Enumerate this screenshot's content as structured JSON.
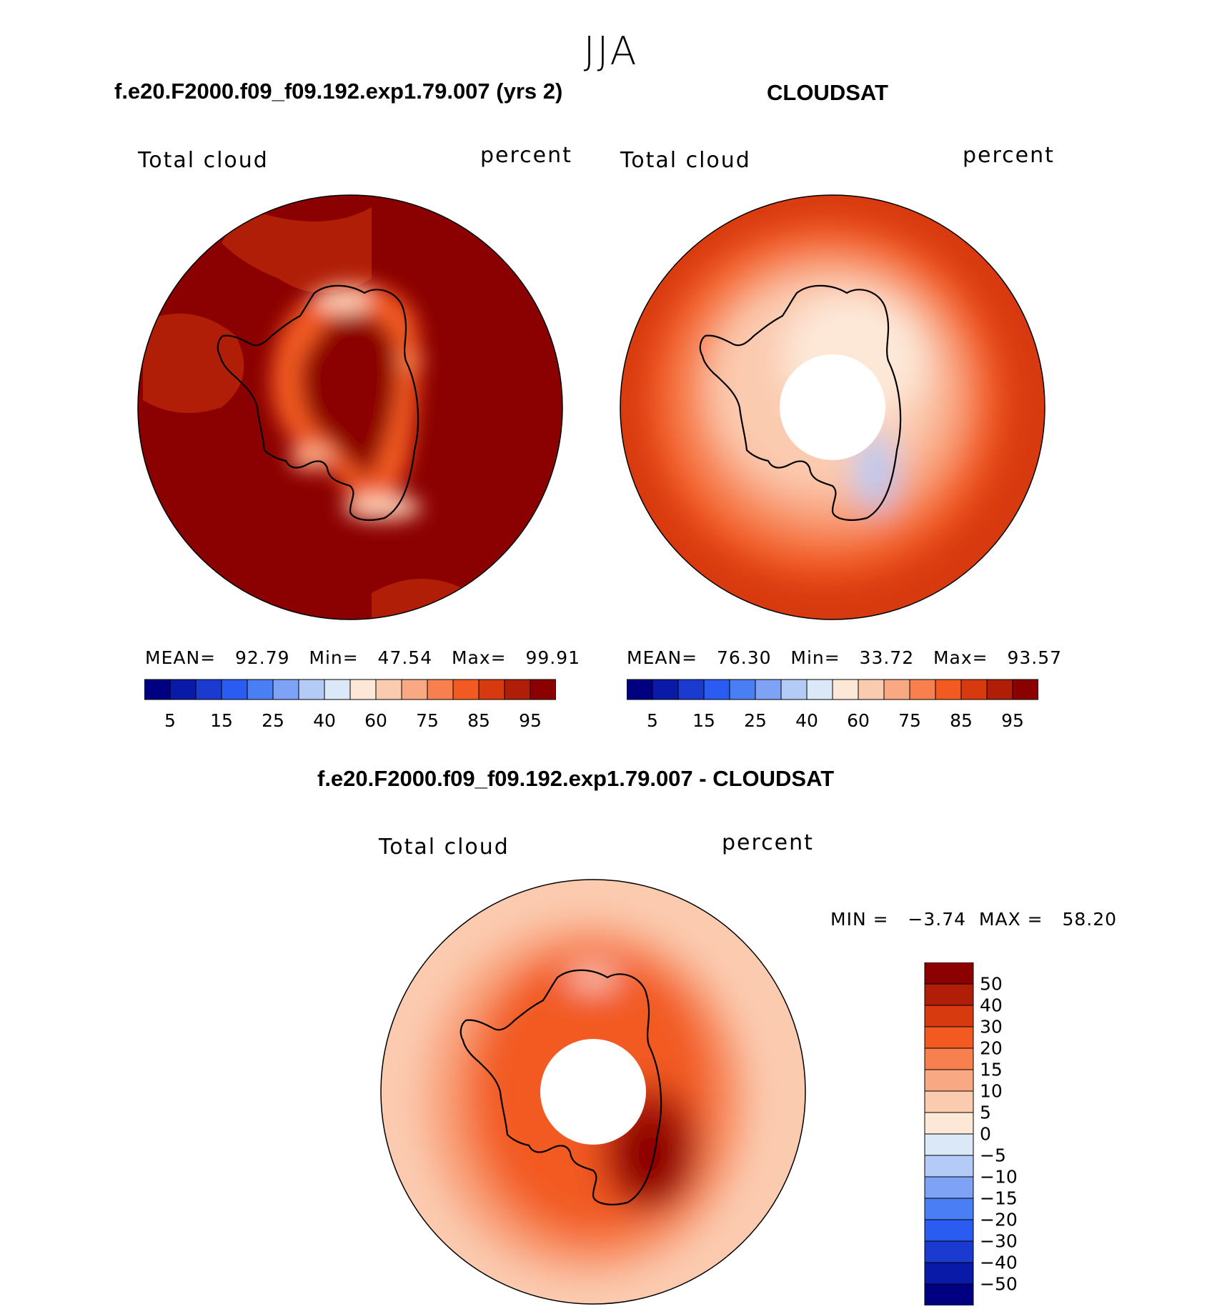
{
  "season": "JJA",
  "panels": [
    {
      "id": "model",
      "title": "f.e20.F2000.f09_f09.192.exp1.79.007 (yrs 2)",
      "field_label": "Total cloud",
      "units_label": "percent",
      "stats": {
        "mean_label": "MEAN=",
        "mean": "92.79",
        "min_label": "Min=",
        "min": "47.54",
        "max_label": "Max=",
        "max": "99.91"
      },
      "colorbar_ticks": [
        "5",
        "15",
        "25",
        "40",
        "60",
        "75",
        "85",
        "95"
      ]
    },
    {
      "id": "obs",
      "title": "CLOUDSAT",
      "field_label": "Total cloud",
      "units_label": "percent",
      "stats": {
        "mean_label": "MEAN=",
        "mean": "76.30",
        "min_label": "Min=",
        "min": "33.72",
        "max_label": "Max=",
        "max": "93.57"
      },
      "colorbar_ticks": [
        "5",
        "15",
        "25",
        "40",
        "60",
        "75",
        "85",
        "95"
      ]
    }
  ],
  "diff_panel": {
    "title": "f.e20.F2000.f09_f09.192.exp1.79.007 - CLOUDSAT",
    "field_label": "Total cloud",
    "units_label": "percent",
    "minmax": {
      "min_label": "MIN =",
      "min": "−3.74",
      "max_label": "MAX =",
      "max": "58.20"
    },
    "colorbar_ticks": [
      "50",
      "40",
      "30",
      "20",
      "15",
      "10",
      "5",
      "0",
      "−5",
      "−10",
      "−15",
      "−20",
      "−30",
      "−40",
      "−50"
    ]
  },
  "colors": {
    "abs_scale": [
      "#000080",
      "#0a1aa8",
      "#1a3ad0",
      "#2a5cf2",
      "#4a7ef4",
      "#7ea2f6",
      "#b4cbf7",
      "#dbe8f8",
      "#fde8d8",
      "#fbcbb0",
      "#f9a884",
      "#f7804e",
      "#f25a22",
      "#d83a10",
      "#b01e08",
      "#8b0000"
    ],
    "diff_scale": [
      "#8b0000",
      "#b01e08",
      "#d83a10",
      "#f25a22",
      "#f7804e",
      "#f9a884",
      "#fbcbb0",
      "#fde8d8",
      "#dbe8f8",
      "#b4cbf7",
      "#7ea2f6",
      "#4a7ef4",
      "#2a5cf2",
      "#1a3ad0",
      "#0a1aa8",
      "#000080"
    ]
  },
  "chart_data": [
    {
      "type": "heatmap",
      "title": "f.e20.F2000.f09_f09.192.exp1.79.007 (yrs 2)",
      "levels": [
        5,
        10,
        15,
        20,
        25,
        30,
        40,
        50,
        60,
        70,
        75,
        80,
        85,
        90,
        95
      ],
      "mean": 92.79,
      "min": 47.54,
      "max": 99.91
    },
    {
      "type": "heatmap",
      "title": "CLOUDSAT",
      "levels": [
        5,
        10,
        15,
        20,
        25,
        30,
        40,
        50,
        60,
        70,
        75,
        80,
        85,
        90,
        95
      ],
      "mean": 76.3,
      "min": 33.72,
      "max": 93.57
    },
    {
      "type": "heatmap",
      "title": "f.e20.F2000.f09_f09.192.exp1.79.007 - CLOUDSAT",
      "levels": [
        -50,
        -40,
        -30,
        -20,
        -15,
        -10,
        -5,
        0,
        5,
        10,
        15,
        20,
        30,
        40,
        50
      ],
      "min": -3.74,
      "max": 58.2
    }
  ]
}
